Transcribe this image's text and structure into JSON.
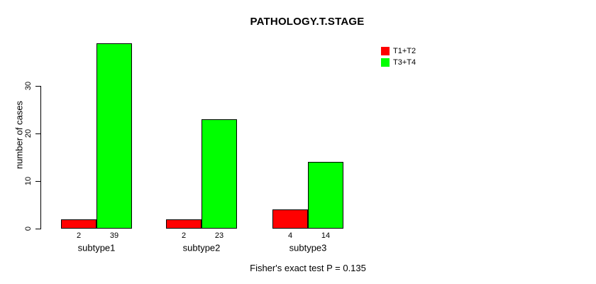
{
  "chart_data": {
    "type": "bar",
    "title": "PATHOLOGY.T.STAGE",
    "ylabel": "number of cases",
    "xlabel": "",
    "categories": [
      "subtype1",
      "subtype2",
      "subtype3"
    ],
    "series": [
      {
        "name": "T1+T2",
        "color": "#ff0000",
        "values": [
          2,
          2,
          4
        ]
      },
      {
        "name": "T3+T4",
        "color": "#00ff00",
        "values": [
          39,
          23,
          14
        ]
      }
    ],
    "bar_value_labels": [
      [
        2,
        39
      ],
      [
        2,
        23
      ],
      [
        4,
        14
      ]
    ],
    "yticks": [
      0,
      10,
      20,
      30
    ],
    "ylim": [
      0,
      39
    ],
    "grid": false,
    "legend_position": "top-right",
    "annotation": "Fisher's exact test P = 0.135"
  },
  "colors": {
    "background": "#ffffff",
    "axis": "#000000",
    "text": "#000000",
    "bar_border": "#000000"
  }
}
